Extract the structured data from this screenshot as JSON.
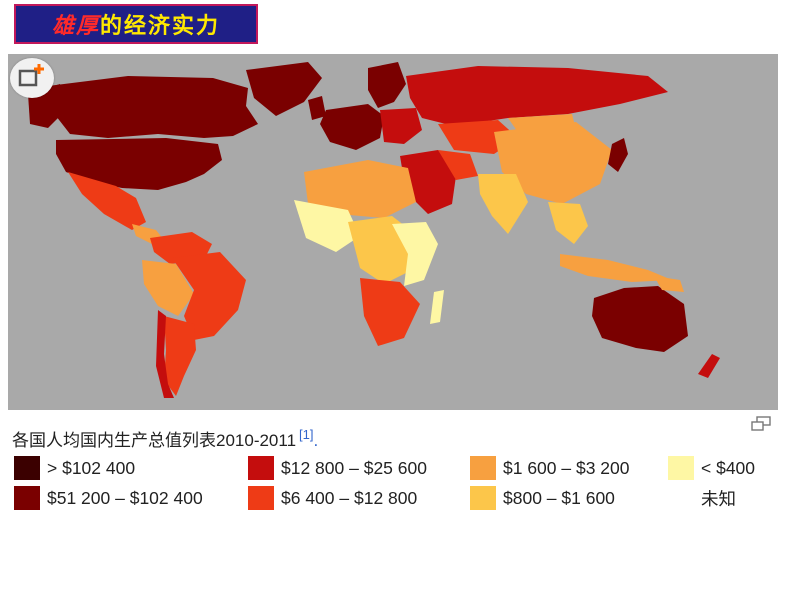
{
  "title": {
    "part1": "雄厚",
    "part2": "的经济实力"
  },
  "map": {
    "ocean_color": "#a9a9a9",
    "caption": "各国人均国内生产总值列表2010-2011",
    "reference": "[1]",
    "reference_dot": "."
  },
  "legend": [
    {
      "label": "> $102 400",
      "color": "#3b0000"
    },
    {
      "label": "$51 200 – $102 400",
      "color": "#7a0000"
    },
    {
      "label": "$12 800 – $25 600",
      "color": "#c40d0d"
    },
    {
      "label": "$6 400 – $12 800",
      "color": "#ee3b16"
    },
    {
      "label": "$1 600 – $3 200",
      "color": "#f7a040"
    },
    {
      "label": "$800 – $1 600",
      "color": "#fcc64a"
    },
    {
      "label": "< $400",
      "color": "#fef7a4"
    },
    {
      "label": "未知",
      "color": "#ffffff"
    }
  ],
  "icons": {
    "expand": "expand-plus-icon",
    "enlarge": "enlarge-icon"
  }
}
